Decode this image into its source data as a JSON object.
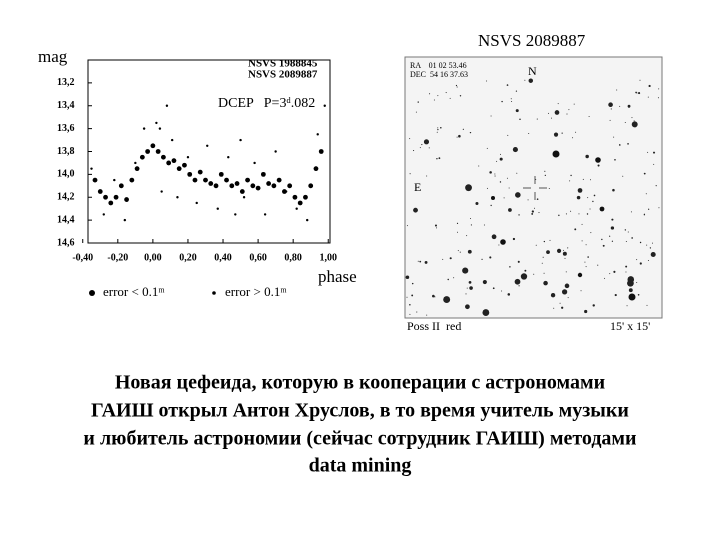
{
  "chart_data": {
    "type": "scatter",
    "y_label": "mag",
    "x_label": "phase",
    "annotations": [
      "NSVS 1988845",
      "NSVS 2089887",
      "DCEP   P=3ᵈ.082"
    ],
    "xlim": [
      -0.37,
      1.01
    ],
    "ylim": [
      14.6,
      13.0
    ],
    "xticks": [
      {
        "value": -0.4,
        "label": "-0,40"
      },
      {
        "value": -0.2,
        "label": "-0,20"
      },
      {
        "value": 0,
        "label": "0,00"
      },
      {
        "value": 0.2,
        "label": "0,20"
      },
      {
        "value": 0.4,
        "label": "0,40"
      },
      {
        "value": 0.6,
        "label": "0,60"
      },
      {
        "value": 0.8,
        "label": "0,80"
      },
      {
        "value": 1.0,
        "label": "1,00"
      }
    ],
    "yticks": [
      {
        "value": 13.2,
        "label": "13,2"
      },
      {
        "value": 13.4,
        "label": "13,4"
      },
      {
        "value": 13.6,
        "label": "13,6"
      },
      {
        "value": 13.8,
        "label": "13,8"
      },
      {
        "value": 14.0,
        "label": "14,0"
      },
      {
        "value": 14.2,
        "label": "14,2"
      },
      {
        "value": 14.4,
        "label": "14,4"
      },
      {
        "value": 14.6,
        "label": "14,6"
      }
    ],
    "series": [
      {
        "name": "error < 0.1ᵐ",
        "color": "#000000",
        "marker_size": 2.4,
        "x": [
          -0.33,
          -0.3,
          -0.27,
          -0.24,
          -0.21,
          -0.18,
          -0.15,
          -0.12,
          -0.09,
          -0.06,
          -0.03,
          0.0,
          0.03,
          0.06,
          0.09,
          0.12,
          0.15,
          0.18,
          0.21,
          0.24,
          0.27,
          0.3,
          0.33,
          0.36,
          0.39,
          0.42,
          0.45,
          0.48,
          0.51,
          0.54,
          0.57,
          0.6,
          0.63,
          0.66,
          0.69,
          0.72,
          0.75,
          0.78,
          0.81,
          0.84,
          0.87,
          0.9,
          0.93,
          0.96
        ],
        "values": [
          14.05,
          14.15,
          14.2,
          14.25,
          14.2,
          14.1,
          14.22,
          14.05,
          13.95,
          13.85,
          13.8,
          13.75,
          13.8,
          13.85,
          13.9,
          13.88,
          13.95,
          13.92,
          14.0,
          14.05,
          13.98,
          14.05,
          14.08,
          14.1,
          14.0,
          14.05,
          14.1,
          14.08,
          14.15,
          14.05,
          14.1,
          14.12,
          14.0,
          14.08,
          14.1,
          14.05,
          14.15,
          14.1,
          14.2,
          14.25,
          14.2,
          14.1,
          13.95,
          13.8
        ]
      },
      {
        "name": "error > 0.1ᵐ",
        "color": "#000000",
        "marker_size": 1.2,
        "x": [
          -0.35,
          -0.28,
          -0.22,
          -0.16,
          -0.1,
          -0.05,
          0.02,
          0.05,
          0.08,
          0.11,
          0.14,
          0.2,
          0.25,
          0.31,
          0.37,
          0.43,
          0.47,
          0.52,
          0.58,
          0.64,
          0.7,
          0.76,
          0.82,
          0.88,
          0.94,
          0.98,
          0.04,
          0.5
        ],
        "values": [
          13.95,
          14.35,
          14.05,
          14.4,
          13.9,
          13.6,
          13.55,
          14.15,
          13.4,
          13.7,
          14.2,
          13.85,
          14.25,
          13.75,
          14.3,
          13.85,
          14.35,
          14.2,
          13.9,
          14.35,
          13.8,
          14.15,
          14.3,
          14.4,
          13.65,
          13.4,
          13.6,
          13.7
        ]
      }
    ]
  },
  "finder_chart": {
    "title": "NSVS 2089887",
    "ra": "RA    01 02 53.46",
    "dec": "DEC  54 16 37.63",
    "north": "N",
    "east": "E",
    "survey": "Poss II  red",
    "field": "15' x 15'"
  },
  "caption": [
    "Новая цефеида, которую в кооперации с астрономами",
    "ГАИШ открыл Антон Хруслов, в то время учитель музыки",
    "и любитель астрономии (сейчас сотрудник ГАИШ) методами",
    "data mining"
  ]
}
